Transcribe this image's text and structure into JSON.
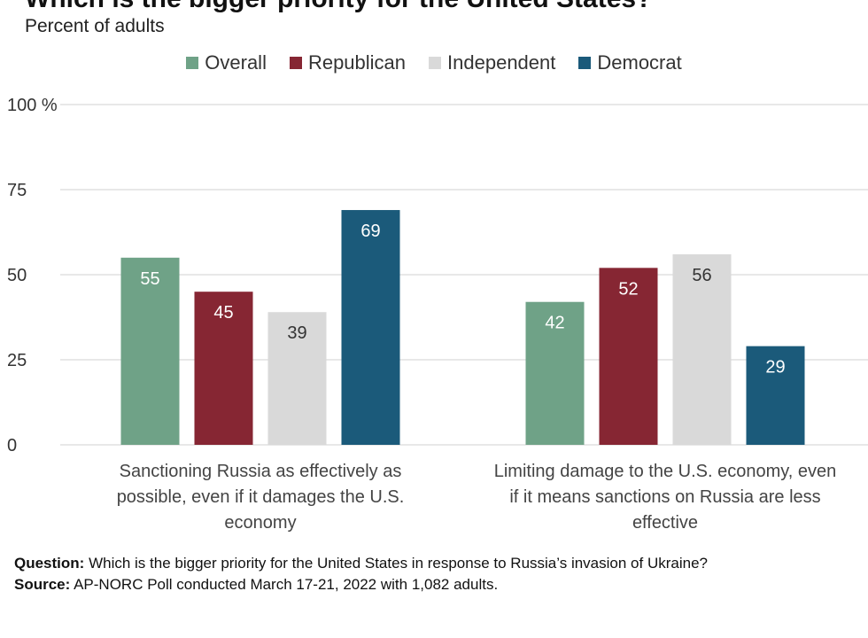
{
  "title": "Which is the bigger priority for the United States?",
  "subtitle": "Percent of adults",
  "colors": {
    "Overall": "#6fa287",
    "Republican": "#862633",
    "Independent": "#d9d9d9",
    "Democrat": "#1b5a7a"
  },
  "chart_data": {
    "type": "bar",
    "categories": [
      [
        "Sanctioning Russia as effectively as",
        "possible, even if it damages the U.S.",
        "economy"
      ],
      [
        "Limiting damage to the U.S. economy, even",
        "if it means sanctions on Russia are less",
        "effective"
      ]
    ],
    "series": [
      {
        "name": "Overall",
        "values": [
          55,
          42
        ]
      },
      {
        "name": "Republican",
        "values": [
          45,
          52
        ]
      },
      {
        "name": "Independent",
        "values": [
          39,
          56
        ]
      },
      {
        "name": "Democrat",
        "values": [
          69,
          29
        ]
      }
    ],
    "ylim": [
      0,
      100
    ],
    "yticks": [
      "0",
      "25",
      "50",
      "75",
      "100 %"
    ],
    "ytick_values": [
      0,
      25,
      50,
      75,
      100
    ],
    "grid": true,
    "legend": "top-center"
  },
  "footer": {
    "question_label": "Question:",
    "question_text": " Which is the bigger priority for the United States in response to Russia’s invasion of Ukraine?",
    "source_label": "Source:",
    "source_text": " AP-NORC Poll conducted March 17-21, 2022 with 1,082 adults."
  }
}
